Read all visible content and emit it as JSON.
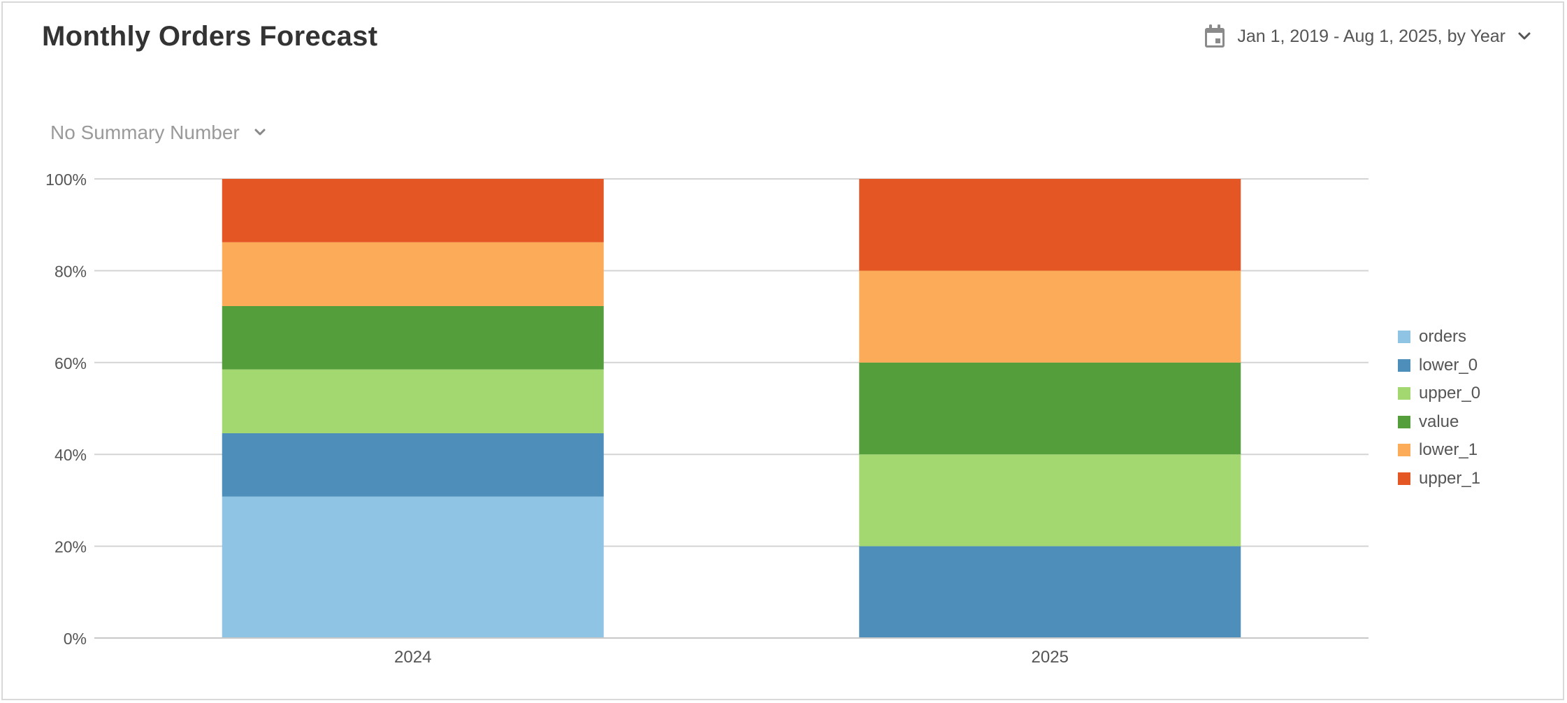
{
  "header": {
    "title": "Monthly Orders Forecast",
    "date_range": "Jan 1, 2019 - Aug 1, 2025, by Year"
  },
  "summary_selector": {
    "label": "No Summary Number"
  },
  "colors": {
    "orders": "#90c4e4",
    "lower_0": "#4d8eba",
    "upper_0": "#a3d871",
    "value": "#549f3b",
    "lower_1": "#fcab58",
    "upper_1": "#e45623",
    "gridline": "#d4d4d4"
  },
  "chart_data": {
    "type": "bar",
    "stacked": true,
    "normalized": true,
    "categories": [
      "2024",
      "2025"
    ],
    "series": [
      {
        "name": "orders",
        "color": "#90c4e4",
        "values": [
          30.8,
          0
        ]
      },
      {
        "name": "lower_0",
        "color": "#4d8eba",
        "values": [
          13.8,
          20
        ]
      },
      {
        "name": "upper_0",
        "color": "#a3d871",
        "values": [
          13.9,
          20
        ]
      },
      {
        "name": "value",
        "color": "#549f3b",
        "values": [
          13.8,
          20
        ]
      },
      {
        "name": "lower_1",
        "color": "#fcab58",
        "values": [
          13.9,
          20
        ]
      },
      {
        "name": "upper_1",
        "color": "#e45623",
        "values": [
          13.8,
          20
        ]
      }
    ],
    "ylim": [
      0,
      100
    ],
    "yticks": [
      "0%",
      "20%",
      "40%",
      "60%",
      "80%",
      "100%"
    ],
    "ytick_values": [
      0,
      20,
      40,
      60,
      80,
      100
    ],
    "grid": true,
    "legend_position": "right"
  }
}
